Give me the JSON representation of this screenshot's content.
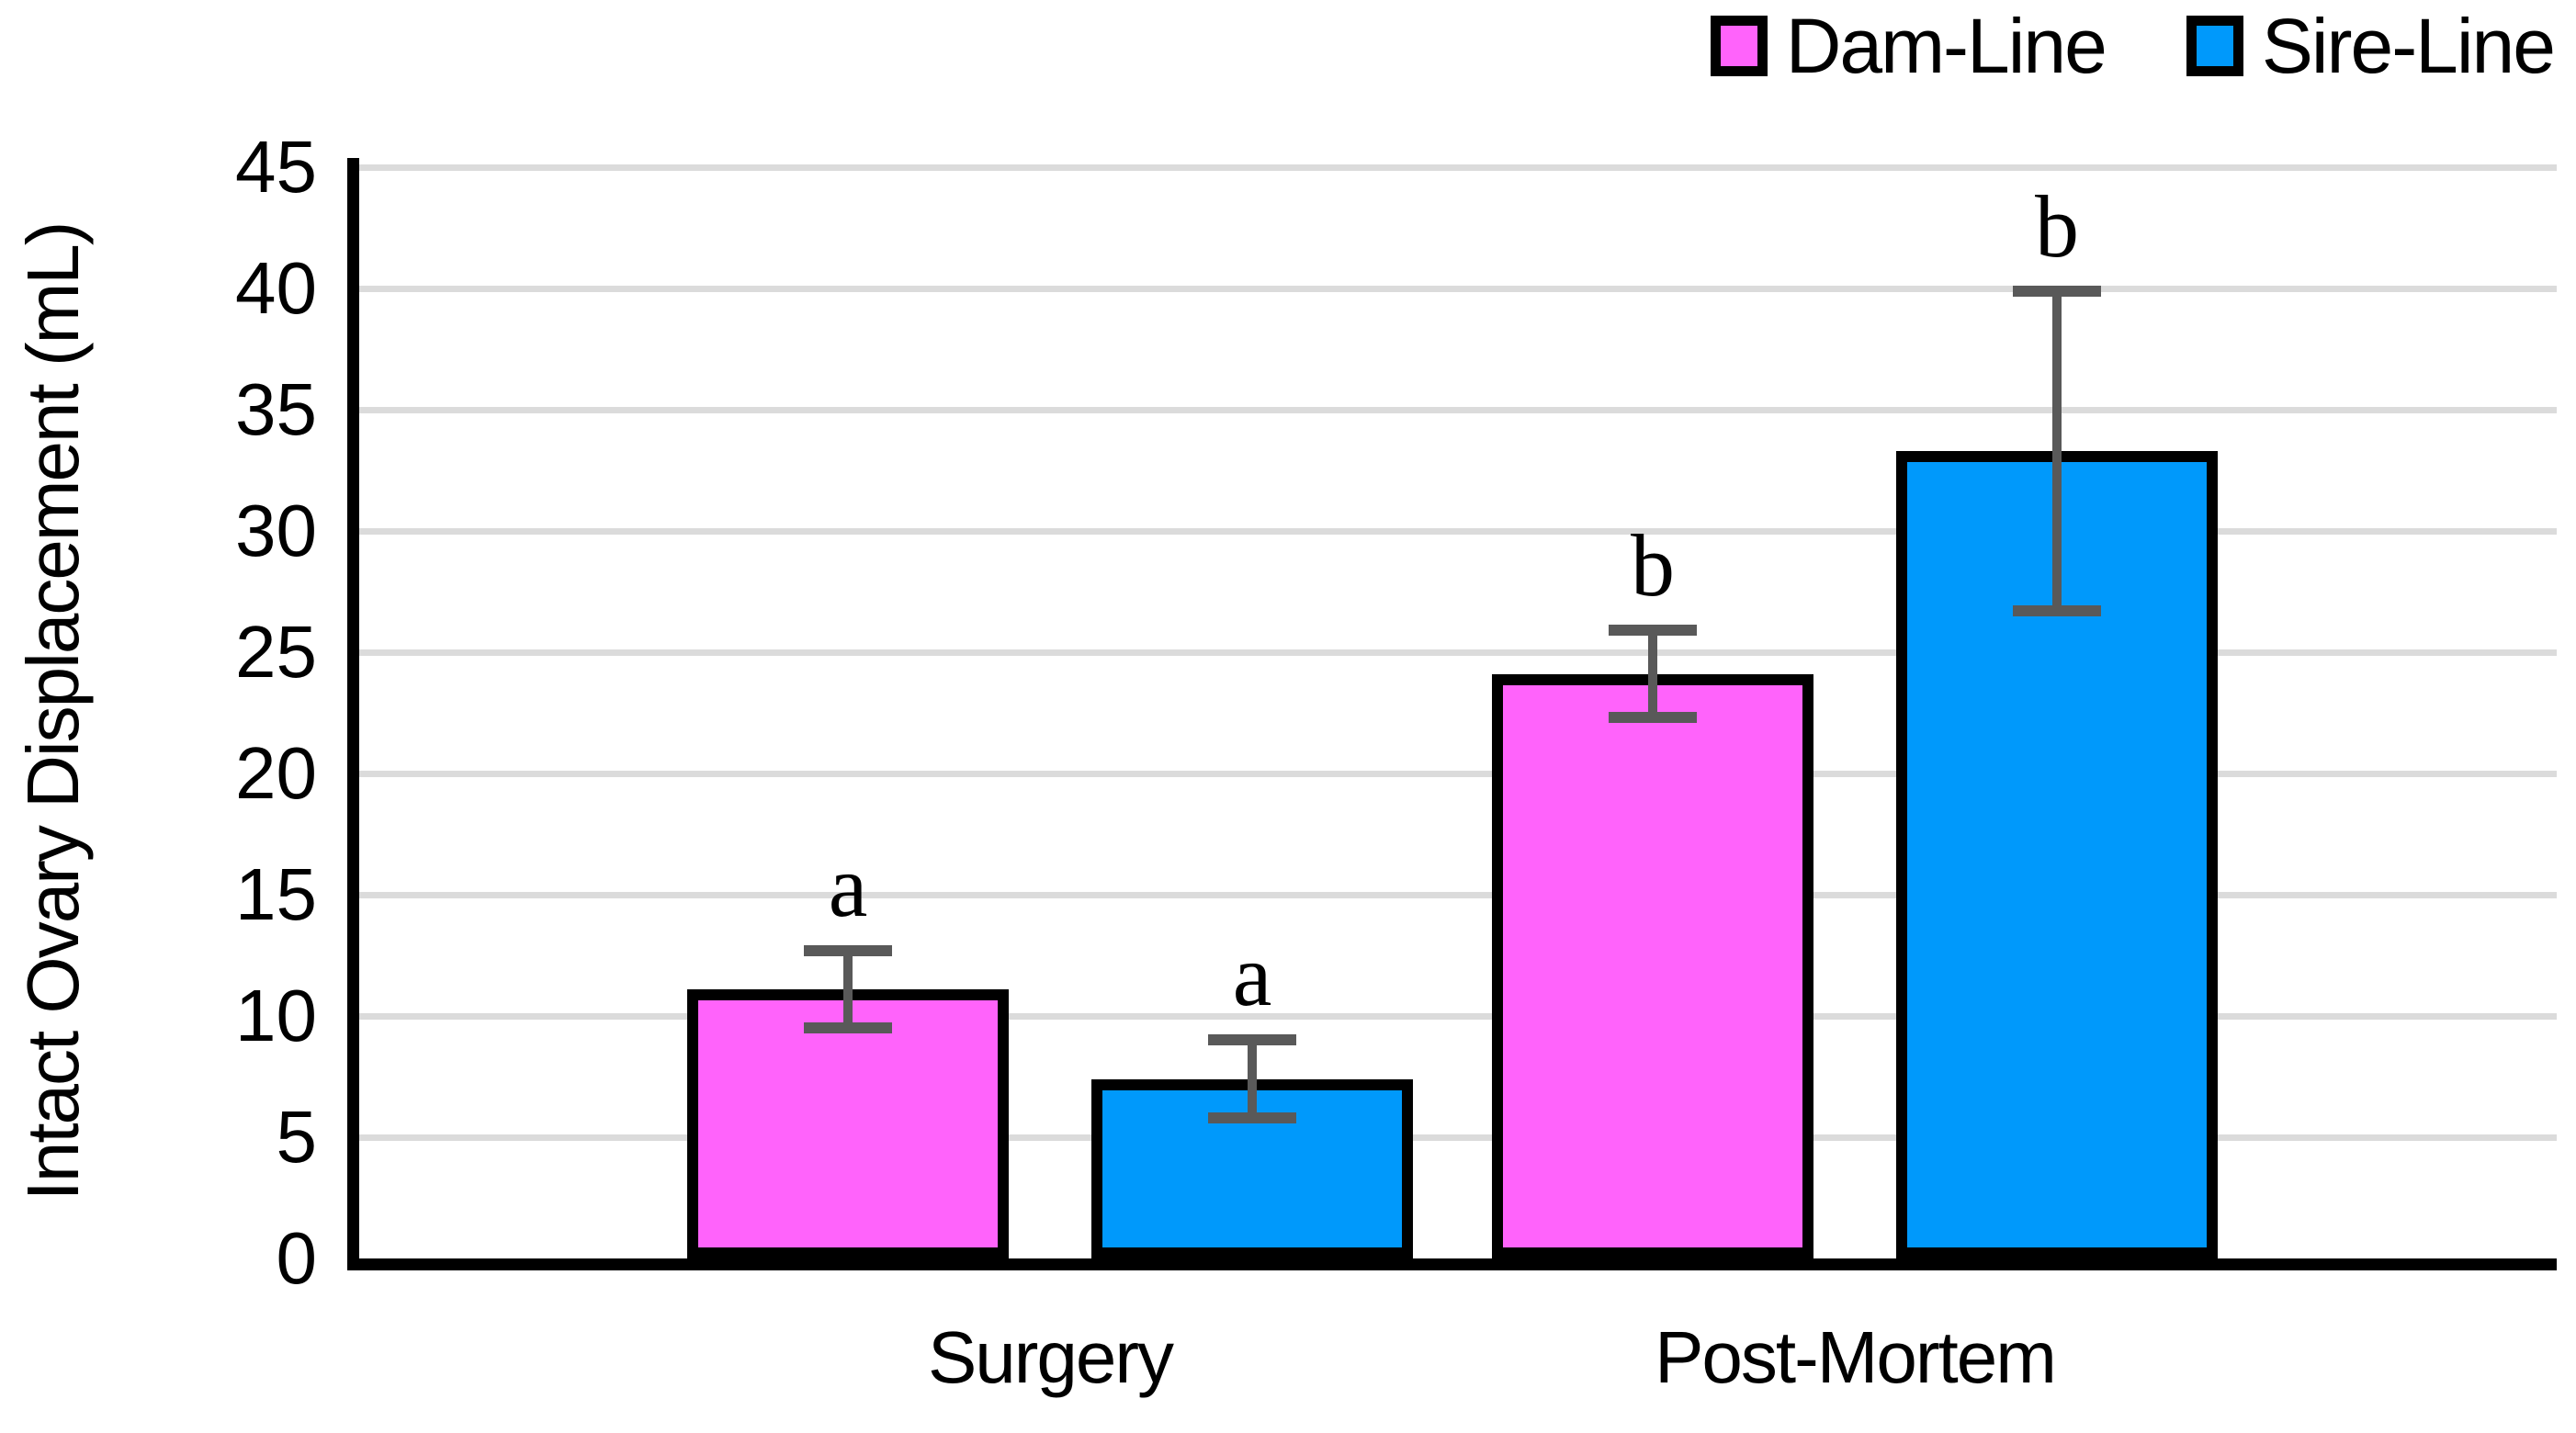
{
  "legend": {
    "items": [
      {
        "label": "Dam-Line",
        "color": "#FF63FB"
      },
      {
        "label": "Sire-Line",
        "color": "#0099FB"
      }
    ]
  },
  "chart_data": {
    "type": "bar",
    "title": "",
    "xlabel": "",
    "ylabel": "Intact Ovary Displacement (mL)",
    "categories": [
      "Surgery",
      "Post-Mortem"
    ],
    "series": [
      {
        "name": "Dam-Line",
        "color": "#FF63FB",
        "values": [
          11.1,
          24.1
        ],
        "errors": [
          1.6,
          1.8
        ],
        "sig_letters": [
          "a",
          "b"
        ]
      },
      {
        "name": "Sire-Line",
        "color": "#0099FB",
        "values": [
          7.4,
          33.3
        ],
        "errors": [
          1.6,
          6.6
        ],
        "sig_letters": [
          "a",
          "b"
        ]
      }
    ],
    "ylim": [
      0,
      45
    ],
    "ytick_step": 5,
    "grid": "horizontal",
    "legend_position": "top-right",
    "error_bar_color": "#595959",
    "gridline_color": "#DBDBDB",
    "axis_color": "#000000"
  }
}
